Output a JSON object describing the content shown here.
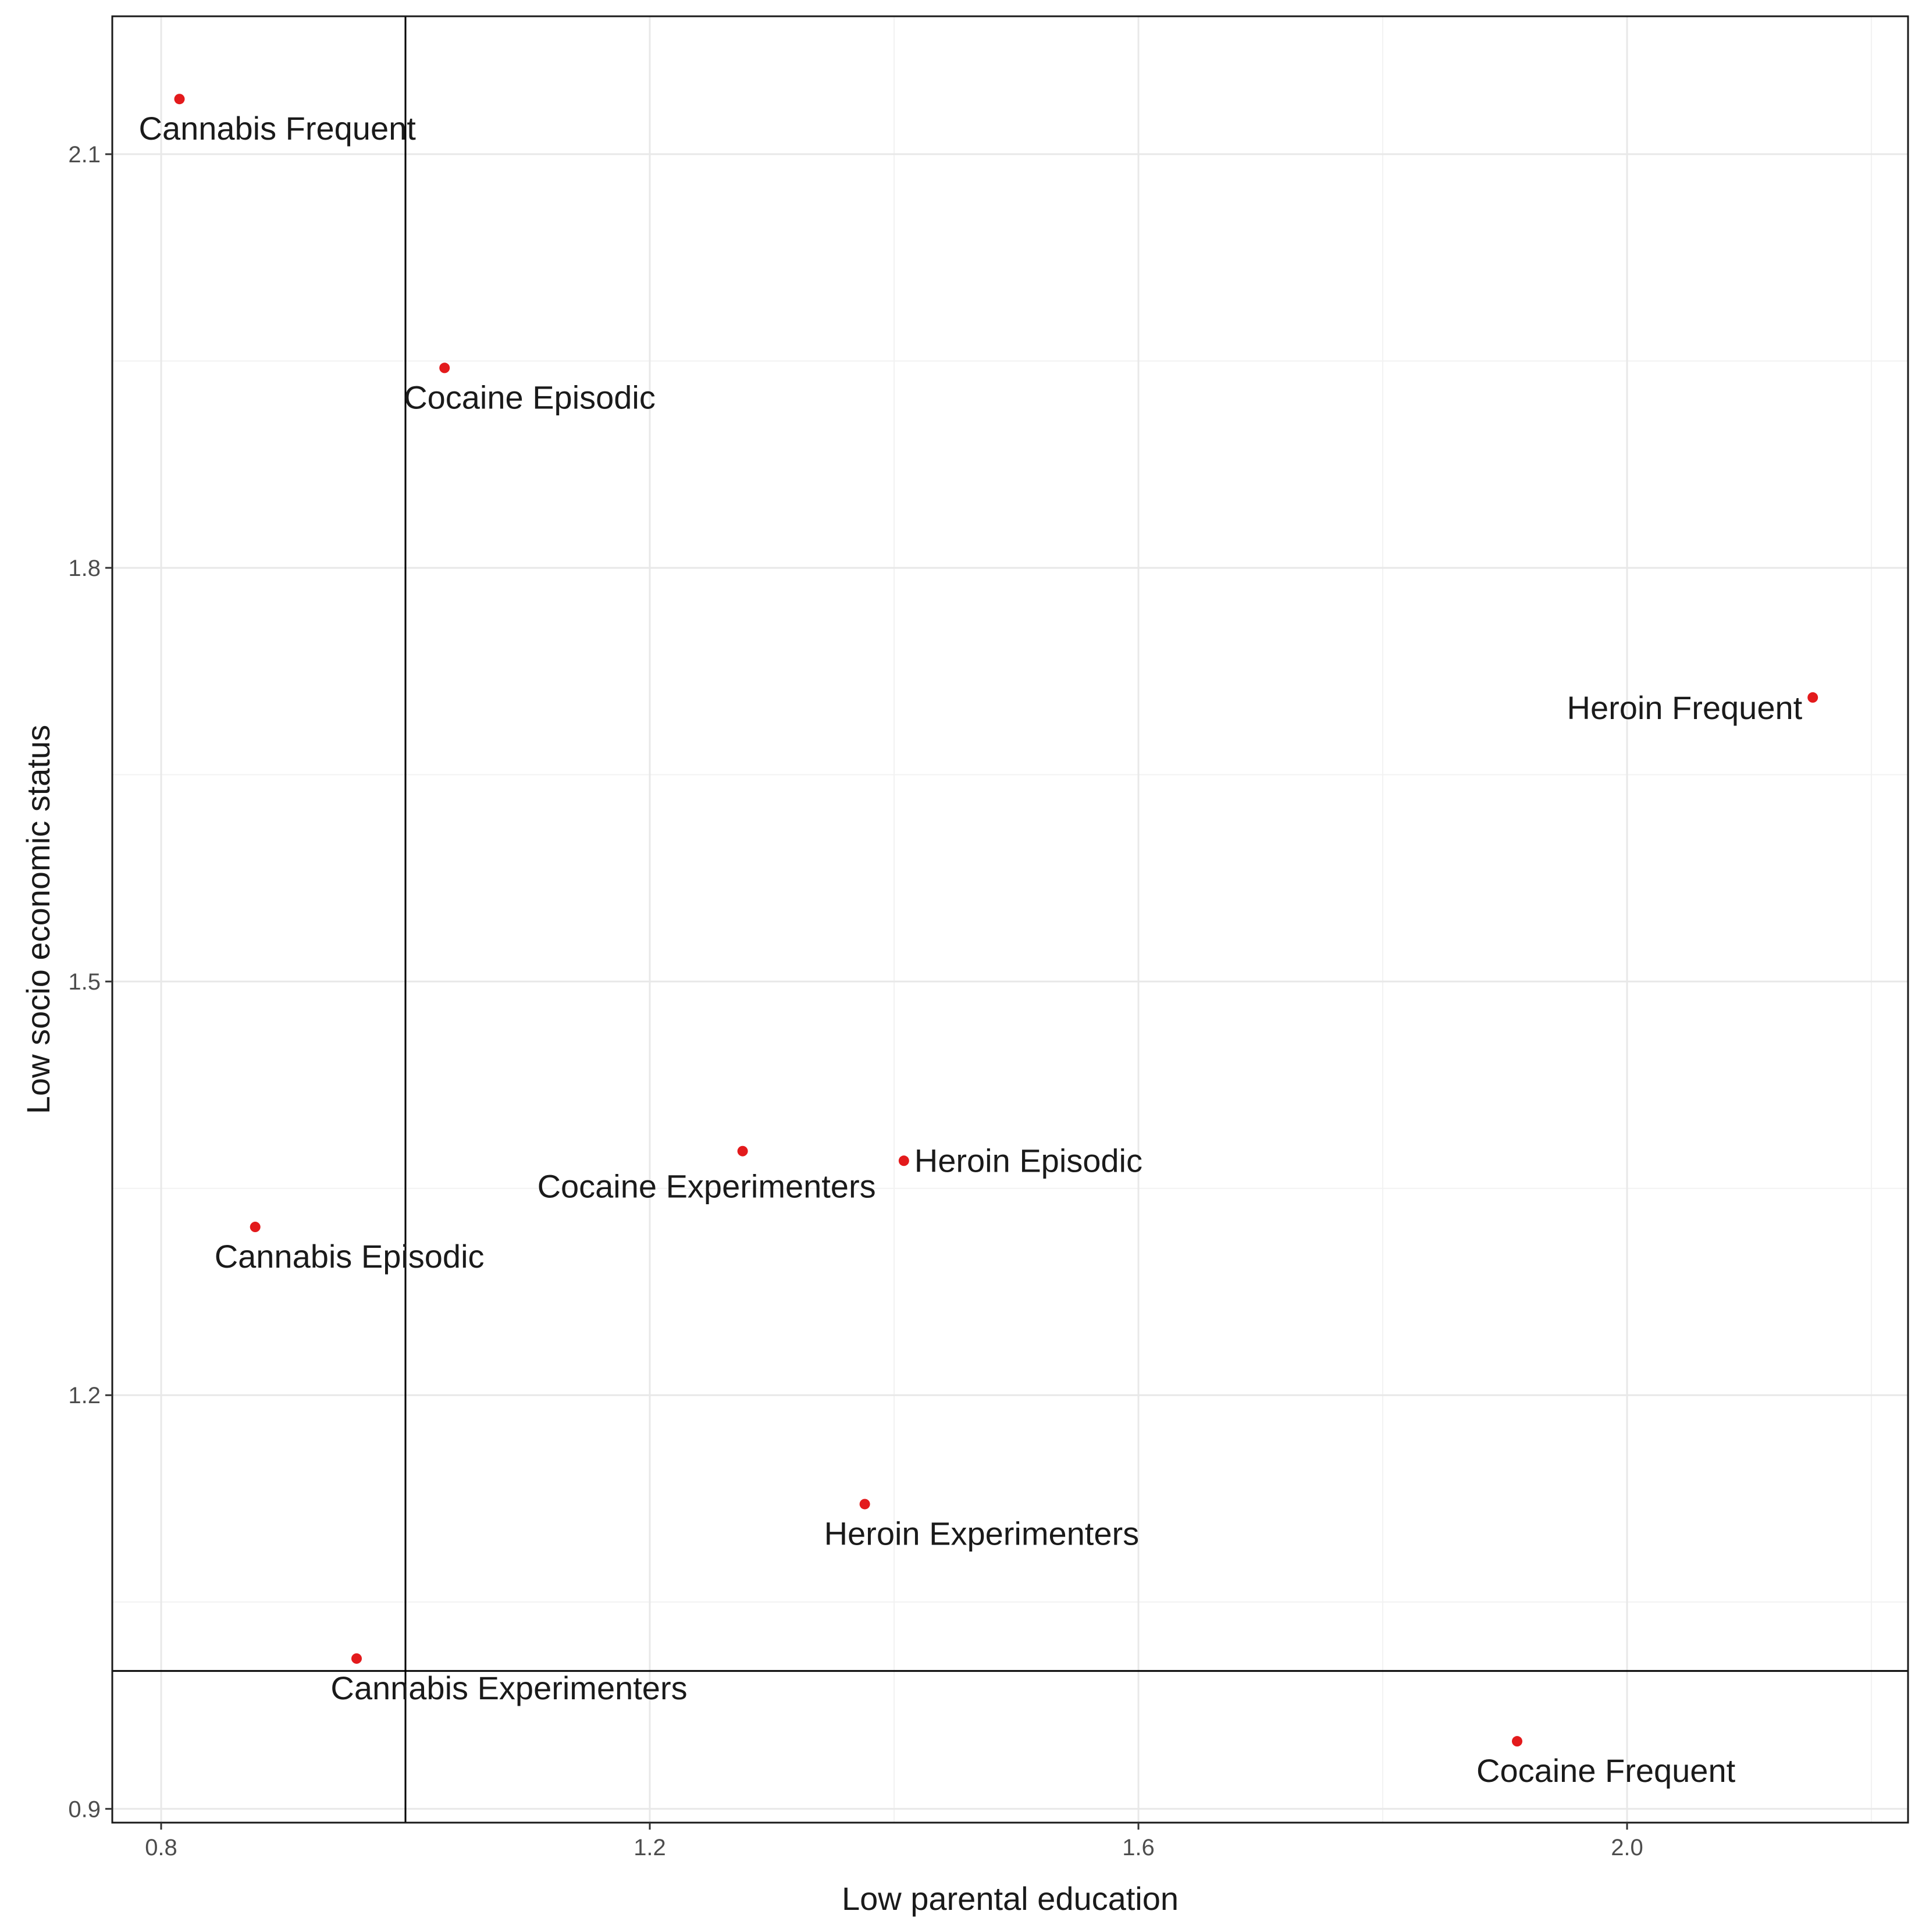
{
  "chart_data": {
    "type": "scatter",
    "title": "",
    "xlabel": "Low parental education",
    "ylabel": "Low socio economic status",
    "xlim": [
      0.76,
      2.23
    ],
    "ylim": [
      0.89,
      2.2
    ],
    "x_ticks": [
      0.8,
      1.2,
      1.6,
      2.0
    ],
    "x_tick_labels": [
      "0.8",
      "1.2",
      "1.6",
      "2.0"
    ],
    "x_minor_ticks": [
      1.0,
      1.4,
      1.8,
      2.2
    ],
    "y_ticks": [
      0.9,
      1.2,
      1.5,
      1.8,
      2.1
    ],
    "y_tick_labels": [
      "0.9",
      "1.2",
      "1.5",
      "1.8",
      "2.1"
    ],
    "y_minor_ticks": [
      1.05,
      1.35,
      1.65,
      1.95
    ],
    "reference_lines": {
      "x": 1.0,
      "y": 1.0
    },
    "grid": true,
    "point_color": "#e31a1c",
    "points": [
      {
        "label": "Cannabis Frequent",
        "x": 0.815,
        "y": 2.14,
        "label_anchor": "below"
      },
      {
        "label": "Cocaine Episodic",
        "x": 1.032,
        "y": 1.945,
        "label_anchor": "below"
      },
      {
        "label": "Heroin Frequent",
        "x": 2.152,
        "y": 1.706,
        "label_anchor": "left"
      },
      {
        "label": "Cocaine Experimenters",
        "x": 1.276,
        "y": 1.377,
        "label_anchor": "below-left"
      },
      {
        "label": "Heroin Episodic",
        "x": 1.408,
        "y": 1.37,
        "label_anchor": "right"
      },
      {
        "label": "Cannabis Episodic",
        "x": 0.877,
        "y": 1.322,
        "label_anchor": "below"
      },
      {
        "label": "Heroin Experimenters",
        "x": 1.376,
        "y": 1.121,
        "label_anchor": "below"
      },
      {
        "label": "Cannabis Experimenters",
        "x": 0.96,
        "y": 1.009,
        "label_anchor": "below-right"
      },
      {
        "label": "Cocaine Frequent",
        "x": 1.91,
        "y": 0.949,
        "label_anchor": "below"
      }
    ]
  }
}
